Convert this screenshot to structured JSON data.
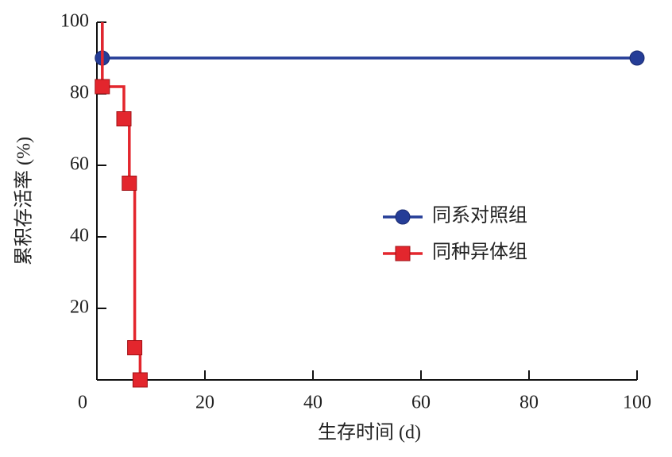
{
  "chart_data": {
    "type": "step",
    "xlabel": "生存时间 (d)",
    "ylabel": "累积存活率 (%)",
    "xlim": [
      0,
      100
    ],
    "ylim": [
      0,
      100
    ],
    "xticks": [
      0,
      20,
      40,
      60,
      80,
      100
    ],
    "yticks": [
      20,
      40,
      60,
      80,
      100
    ],
    "legend": "right",
    "series": [
      {
        "name": "同系对照组",
        "color": "#253d97",
        "marker": "circle",
        "x": [
          1,
          1,
          100
        ],
        "values": [
          100,
          90,
          90
        ],
        "markers": [
          false,
          true,
          true
        ]
      },
      {
        "name": "同种异体组",
        "color": "#e3262d",
        "marker": "square",
        "x": [
          1,
          1,
          5,
          6,
          7,
          8
        ],
        "values": [
          100,
          82,
          73,
          55,
          9,
          0
        ],
        "markers": [
          false,
          true,
          true,
          true,
          true,
          true
        ]
      }
    ]
  }
}
